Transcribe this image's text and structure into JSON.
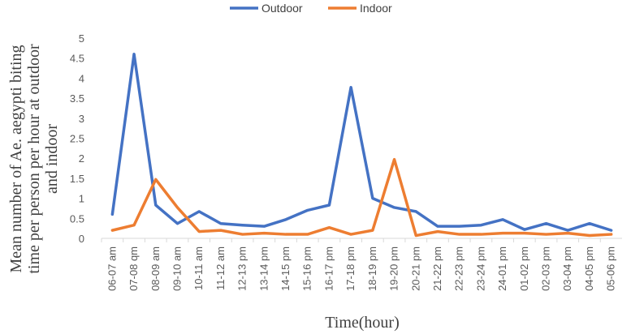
{
  "chart_data": {
    "type": "line",
    "title": "",
    "xlabel": "Time(hour)",
    "ylabel_lines": [
      "Mean number of Ae. aegypti biting",
      "time per person per hour at outdoor",
      "and indoor"
    ],
    "ylim": [
      0,
      5
    ],
    "yticks": [
      "0",
      "0.5",
      "1",
      "1.5",
      "2",
      "2.5",
      "3",
      "3.5",
      "4",
      "4.5",
      "5"
    ],
    "legend_position": "top-center",
    "grid": false,
    "categories": [
      "06-07 am",
      "07-08 qm",
      "08-09 am",
      "09-10 am",
      "10-11 am",
      "11-12 am",
      "12-13 pm",
      "13-14 pm",
      "14-15 pm",
      "15-16 pm",
      "16-17 pm",
      "17-18 pm",
      "18-19 pm",
      "19-20 pm",
      "20-21 pm",
      "21-22 pm",
      "22-23 pm",
      "23-24 pm",
      "24-01 pm",
      "01-02 pm",
      "02-03 pm",
      "03-04 pm",
      "04-05 pm",
      "05-06 pm"
    ],
    "series": [
      {
        "name": "Outdoor",
        "color": "#4472C4",
        "values": [
          0.6,
          4.6,
          0.83,
          0.37,
          0.67,
          0.37,
          0.33,
          0.3,
          0.47,
          0.7,
          0.83,
          3.77,
          1.0,
          0.77,
          0.67,
          0.3,
          0.3,
          0.33,
          0.47,
          0.22,
          0.37,
          0.2,
          0.37,
          0.2
        ]
      },
      {
        "name": "Indoor",
        "color": "#ED7D31",
        "values": [
          0.2,
          0.33,
          1.47,
          0.77,
          0.17,
          0.2,
          0.1,
          0.13,
          0.1,
          0.1,
          0.27,
          0.1,
          0.2,
          1.97,
          0.07,
          0.17,
          0.1,
          0.1,
          0.13,
          0.13,
          0.1,
          0.13,
          0.07,
          0.1
        ]
      }
    ]
  }
}
